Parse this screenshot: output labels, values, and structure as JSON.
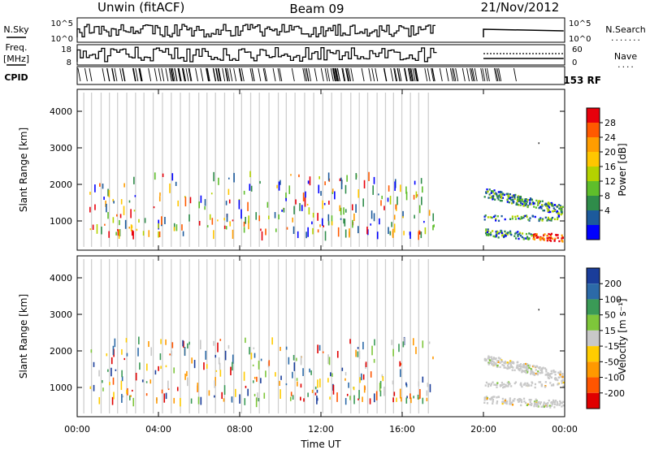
{
  "header": {
    "station": "Unwin (fitACF)",
    "beam": "Beam 09",
    "date": "21/Nov/2012"
  },
  "strip_labels": {
    "nsky": "N.Sky",
    "freq_top": "Freq.",
    "freq_unit": "[MHz]",
    "cpid": "CPID",
    "nsearch": "N.Search",
    "nave": "Nave",
    "cpid_text": "153 RF"
  },
  "strip_ticks": {
    "nsky_top": "10^5",
    "nsky_bottom": "10^0",
    "freq_top": "18",
    "freq_bottom": "8",
    "nave_top": "60",
    "nave_bottom": "0"
  },
  "chart_data": [
    {
      "type": "heatmap",
      "panel": "power",
      "ylabel": "Slant Range [km]",
      "xlabel": "",
      "ylim": [
        200,
        4600
      ],
      "yticks": [
        1000,
        2000,
        3000,
        4000
      ],
      "colorbar_label": "Power [dB]",
      "colorbar_ticks": [
        "28",
        "24",
        "20",
        "16",
        "12",
        "8",
        "4"
      ],
      "colorbar_colors": [
        "#e8000b",
        "#ff5a00",
        "#ff9d00",
        "#ffc600",
        "#b4d200",
        "#5fbe2b",
        "#2f8c4a",
        "#1c5a9c",
        "#0000ff"
      ]
    },
    {
      "type": "heatmap",
      "panel": "velocity",
      "ylabel": "Slant Range [km]",
      "xlabel": "Time UT",
      "ylim": [
        200,
        4600
      ],
      "yticks": [
        1000,
        2000,
        3000,
        4000
      ],
      "xticks": [
        "00:00",
        "04:00",
        "08:00",
        "12:00",
        "16:00",
        "20:00",
        "00:00"
      ],
      "x_hours": [
        0,
        4,
        8,
        12,
        16,
        20,
        24
      ],
      "colorbar_label": "Velocity [m s⁻¹]",
      "colorbar_ticks": [
        "200",
        "100",
        "50",
        "15",
        "-15",
        "-50",
        "-100",
        "-200"
      ],
      "colorbar_colors": [
        "#1a3d9a",
        "#2c6aa8",
        "#3a9a56",
        "#7ec63a",
        "#c8c8c8",
        "#ffcc00",
        "#ff9900",
        "#ff5500",
        "#e00000"
      ]
    }
  ]
}
